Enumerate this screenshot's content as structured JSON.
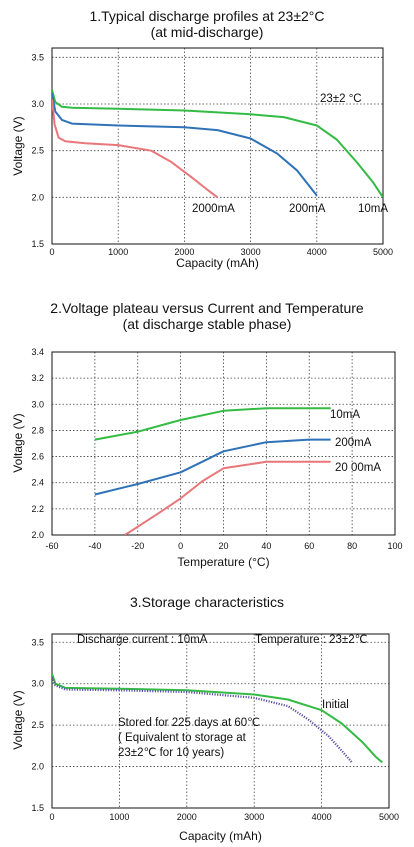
{
  "chart_data": [
    {
      "type": "line",
      "title": "1.Typical discharge profiles at 23±2°C\n(at mid-discharge)",
      "xlabel": "Capacity (mAh)",
      "ylabel": "Voltage (V)",
      "xlim": [
        0,
        5000
      ],
      "ylim": [
        1.5,
        3.6
      ],
      "xticks": [
        "0",
        "1000",
        "2000",
        "3000",
        "4000",
        "5000"
      ],
      "yticks": [
        "1.5",
        "2.0",
        "2.5",
        "3.0",
        "3.5"
      ],
      "grid": true,
      "annotations": [
        "23±2 °C"
      ],
      "series": [
        {
          "name": "10mA",
          "color": "#33bb44",
          "points": [
            [
              0,
              3.15
            ],
            [
              50,
              3.02
            ],
            [
              150,
              2.97
            ],
            [
              300,
              2.96
            ],
            [
              1000,
              2.95
            ],
            [
              2000,
              2.93
            ],
            [
              3000,
              2.89
            ],
            [
              3500,
              2.86
            ],
            [
              4000,
              2.77
            ],
            [
              4300,
              2.62
            ],
            [
              4600,
              2.38
            ],
            [
              4850,
              2.16
            ],
            [
              5000,
              2.0
            ]
          ]
        },
        {
          "name": "200mA",
          "color": "#2f72b8",
          "points": [
            [
              0,
              3.12
            ],
            [
              50,
              2.92
            ],
            [
              150,
              2.83
            ],
            [
              300,
              2.79
            ],
            [
              1000,
              2.77
            ],
            [
              2000,
              2.75
            ],
            [
              2500,
              2.72
            ],
            [
              3000,
              2.63
            ],
            [
              3400,
              2.47
            ],
            [
              3700,
              2.29
            ],
            [
              4000,
              2.02
            ]
          ]
        },
        {
          "name": "2000mA",
          "color": "#e8767a",
          "points": [
            [
              0,
              3.05
            ],
            [
              40,
              2.78
            ],
            [
              100,
              2.64
            ],
            [
              200,
              2.6
            ],
            [
              500,
              2.58
            ],
            [
              1000,
              2.56
            ],
            [
              1500,
              2.5
            ],
            [
              1800,
              2.38
            ],
            [
              2100,
              2.22
            ],
            [
              2350,
              2.08
            ],
            [
              2500,
              2.0
            ]
          ]
        }
      ]
    },
    {
      "type": "line",
      "title": "2.Voltage plateau versus Current and Temperature\n(at discharge stable phase)",
      "xlabel": "Temperature (°C)",
      "ylabel": "Voltage (V)",
      "xlim": [
        -60,
        100
      ],
      "ylim": [
        2.0,
        3.4
      ],
      "xticks": [
        "-60",
        "-40",
        "-20",
        "0",
        "20",
        "40",
        "60",
        "80",
        "100"
      ],
      "yticks": [
        "2.0",
        "2.2",
        "2.4",
        "2.6",
        "2.8",
        "3.0",
        "3.2",
        "3.4"
      ],
      "grid": true,
      "series": [
        {
          "name": "10mA",
          "color": "#33bb44",
          "points": [
            [
              -40,
              2.73
            ],
            [
              -20,
              2.79
            ],
            [
              0,
              2.88
            ],
            [
              20,
              2.95
            ],
            [
              40,
              2.97
            ],
            [
              60,
              2.97
            ],
            [
              70,
              2.97
            ]
          ]
        },
        {
          "name": "200mA",
          "color": "#2f72b8",
          "points": [
            [
              -40,
              2.31
            ],
            [
              -20,
              2.39
            ],
            [
              0,
              2.48
            ],
            [
              10,
              2.56
            ],
            [
              20,
              2.64
            ],
            [
              40,
              2.71
            ],
            [
              60,
              2.73
            ],
            [
              70,
              2.73
            ]
          ]
        },
        {
          "name": "2000mA",
          "color": "#e8767a",
          "points": [
            [
              -26,
              2.0
            ],
            [
              -10,
              2.17
            ],
            [
              0,
              2.28
            ],
            [
              10,
              2.41
            ],
            [
              20,
              2.51
            ],
            [
              40,
              2.56
            ],
            [
              60,
              2.56
            ],
            [
              70,
              2.56
            ]
          ]
        }
      ],
      "series_labels": [
        "10mA",
        "200mA",
        "20 00mA"
      ]
    },
    {
      "type": "line",
      "title": "3.Storage characteristics",
      "xlabel": "Capacity (mAh)",
      "ylabel": "Voltage (V)",
      "xlim": [
        0,
        5000
      ],
      "ylim": [
        1.5,
        3.6
      ],
      "xticks": [
        "0",
        "1000",
        "2000",
        "3000",
        "4000",
        "5000"
      ],
      "yticks": [
        "1.5",
        "2.0",
        "2.5",
        "3.0",
        "3.5"
      ],
      "grid": true,
      "annotations": [
        "Discharge current : 10mA",
        "Temperature : 23±2℃",
        "Stored for 225 days at 60℃",
        "( Equivalent to storage at",
        "23±2℃ for 10 years)"
      ],
      "series": [
        {
          "name": "Initial",
          "color": "#33bb44",
          "style": "solid",
          "points": [
            [
              0,
              3.12
            ],
            [
              50,
              3.0
            ],
            [
              200,
              2.95
            ],
            [
              1000,
              2.94
            ],
            [
              2000,
              2.92
            ],
            [
              3000,
              2.87
            ],
            [
              3500,
              2.81
            ],
            [
              4000,
              2.68
            ],
            [
              4300,
              2.52
            ],
            [
              4600,
              2.3
            ],
            [
              4800,
              2.12
            ],
            [
              4900,
              2.05
            ]
          ]
        },
        {
          "name": "",
          "color": "#5a4fa8",
          "style": "dotted",
          "points": [
            [
              0,
              3.08
            ],
            [
              50,
              2.98
            ],
            [
              200,
              2.93
            ],
            [
              1000,
              2.92
            ],
            [
              2000,
              2.9
            ],
            [
              3000,
              2.83
            ],
            [
              3500,
              2.73
            ],
            [
              3800,
              2.57
            ],
            [
              4100,
              2.37
            ],
            [
              4300,
              2.19
            ],
            [
              4450,
              2.05
            ]
          ]
        }
      ]
    }
  ]
}
